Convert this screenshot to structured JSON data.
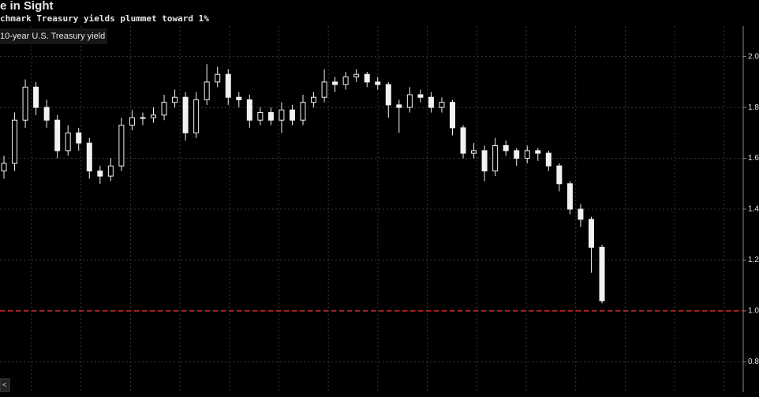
{
  "chart_data": {
    "type": "candlestick",
    "title": "e in Sight",
    "subtitle": "chmark Treasury yields plummet toward 1%",
    "series": [
      {
        "name": "10-year U.S. Treasury yield",
        "color": "#f2f2f2",
        "open": [
          1.55,
          1.58,
          1.75,
          1.88,
          1.8,
          1.75,
          1.63,
          1.7,
          1.66,
          1.55,
          1.53,
          1.57,
          1.73,
          1.76,
          1.76,
          1.77,
          1.82,
          1.84,
          1.7,
          1.83,
          1.9,
          1.93,
          1.84,
          1.83,
          1.75,
          1.78,
          1.75,
          1.79,
          1.75,
          1.82,
          1.84,
          1.9,
          1.89,
          1.92,
          1.93,
          1.9,
          1.89,
          1.81,
          1.8,
          1.85,
          1.84,
          1.8,
          1.82,
          1.72,
          1.62,
          1.63,
          1.55,
          1.65,
          1.63,
          1.6,
          1.63,
          1.62,
          1.57,
          1.5,
          1.4,
          1.36,
          1.25
        ],
        "high": [
          1.61,
          1.78,
          1.91,
          1.9,
          1.83,
          1.77,
          1.73,
          1.72,
          1.68,
          1.57,
          1.6,
          1.76,
          1.79,
          1.78,
          1.8,
          1.85,
          1.87,
          1.86,
          1.86,
          1.97,
          1.96,
          1.95,
          1.86,
          1.85,
          1.8,
          1.8,
          1.82,
          1.81,
          1.85,
          1.86,
          1.95,
          1.92,
          1.94,
          1.95,
          1.94,
          1.92,
          1.9,
          1.83,
          1.88,
          1.87,
          1.86,
          1.84,
          1.83,
          1.73,
          1.66,
          1.65,
          1.68,
          1.67,
          1.64,
          1.65,
          1.64,
          1.63,
          1.58,
          1.51,
          1.42,
          1.37,
          1.26
        ],
        "low": [
          1.52,
          1.55,
          1.72,
          1.77,
          1.72,
          1.6,
          1.61,
          1.63,
          1.52,
          1.5,
          1.51,
          1.55,
          1.71,
          1.73,
          1.74,
          1.75,
          1.8,
          1.67,
          1.68,
          1.81,
          1.88,
          1.81,
          1.8,
          1.72,
          1.73,
          1.73,
          1.7,
          1.73,
          1.73,
          1.8,
          1.82,
          1.86,
          1.87,
          1.9,
          1.88,
          1.87,
          1.76,
          1.7,
          1.78,
          1.82,
          1.78,
          1.78,
          1.69,
          1.6,
          1.6,
          1.51,
          1.53,
          1.61,
          1.57,
          1.58,
          1.59,
          1.55,
          1.47,
          1.38,
          1.33,
          1.15,
          1.03
        ],
        "close": [
          1.58,
          1.75,
          1.88,
          1.8,
          1.75,
          1.63,
          1.7,
          1.66,
          1.55,
          1.53,
          1.57,
          1.73,
          1.76,
          1.76,
          1.77,
          1.82,
          1.84,
          1.7,
          1.83,
          1.9,
          1.93,
          1.84,
          1.83,
          1.75,
          1.78,
          1.75,
          1.79,
          1.75,
          1.82,
          1.84,
          1.9,
          1.89,
          1.92,
          1.93,
          1.9,
          1.89,
          1.81,
          1.8,
          1.85,
          1.84,
          1.8,
          1.82,
          1.72,
          1.62,
          1.63,
          1.55,
          1.65,
          1.63,
          1.6,
          1.63,
          1.62,
          1.57,
          1.5,
          1.4,
          1.36,
          1.25,
          1.04
        ]
      }
    ],
    "ylim": [
      0.68,
      2.12
    ],
    "yticks": [
      {
        "value": 0.8,
        "label": "0.8"
      },
      {
        "value": 1,
        "label": "1.0"
      },
      {
        "value": 1.2,
        "label": "1.2"
      },
      {
        "value": 1.4,
        "label": "1.4"
      },
      {
        "value": 1.6,
        "label": "1.6"
      },
      {
        "value": 1.8,
        "label": "1.8"
      },
      {
        "value": 2,
        "label": "2.0"
      }
    ],
    "grid": true,
    "reference_line": {
      "value": 1,
      "color": "#d42a2a"
    }
  }
}
